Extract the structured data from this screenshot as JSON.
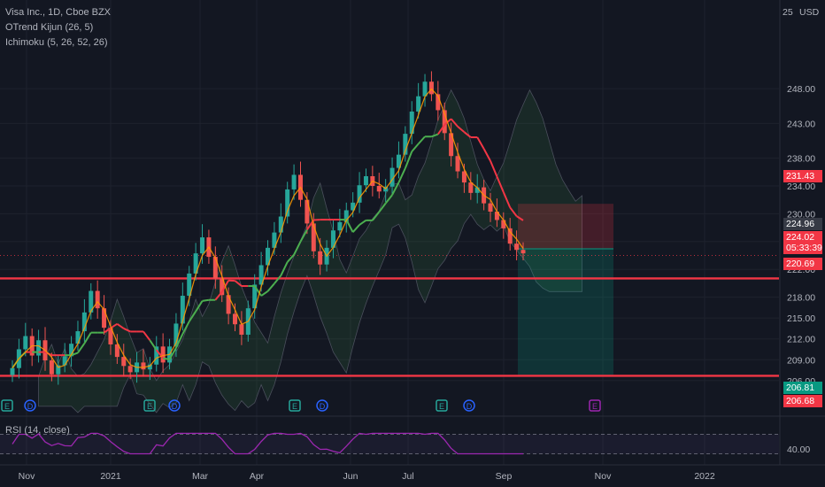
{
  "legend": {
    "symbol": "Visa Inc., 1D, Cboe BZX",
    "otrend": "OTrend Kijun (26, 5)",
    "ichimoku": "Ichimoku (5, 26, 52, 26)",
    "rsi": "RSI (14, close)"
  },
  "currency": "USD",
  "colors": {
    "background": "#131722",
    "up": "#26a69a",
    "down": "#ef5350",
    "line_green": "#4caf50",
    "line_red": "#f23645",
    "lagging": "#ff9800",
    "rsi": "#9c27b0",
    "level_line": "#f23645",
    "earnings_e": "#26a69a",
    "dividend_d": "#2962ff",
    "upcoming_e": "#9c27b0"
  },
  "tags": {
    "target": "231.43",
    "last": "224.96",
    "current_price": "224.02",
    "countdown": "05:33:39",
    "resistance": "220.69",
    "stop": "206.81",
    "support": "206.68",
    "rsi_last": "40.00",
    "top_cut": "25"
  },
  "chart_data": {
    "type": "candlestick",
    "title": "Visa Inc., 1D, Cboe BZX",
    "price_axis": {
      "currency": "USD",
      "ticks": [
        248.0,
        243.0,
        238.0,
        234.0,
        230.0,
        226.0,
        222.0,
        218.0,
        215.0,
        212.0,
        209.0,
        206.0
      ],
      "tick_labels": [
        "248.00",
        "243.00",
        "238.00",
        "234.00",
        "230.00",
        "226.00",
        "222.00",
        "218.00",
        "215.00",
        "212.00",
        "209.00",
        "206.00"
      ],
      "range": [
        203.5,
        251.5
      ]
    },
    "time_axis": {
      "labels": [
        "Nov",
        "2021",
        "Mar",
        "Apr",
        "Jun",
        "Jul",
        "Sep",
        "Nov",
        "2022"
      ]
    },
    "horizontal_levels": [
      220.69,
      206.68
    ],
    "position": {
      "entry": 224.96,
      "target": 231.43,
      "stop": 206.81
    },
    "events": {
      "earnings": [
        "Nov",
        "Jan",
        "Apr",
        "Jul",
        "Oct"
      ],
      "dividends": [
        "Nov",
        "Feb",
        "May",
        "Aug"
      ]
    },
    "closes_sampled": [
      207.8,
      210.5,
      212.4,
      209.6,
      211.8,
      208.9,
      206.9,
      208.2,
      209.5,
      211.3,
      213.1,
      215.8,
      218.9,
      216.4,
      213.6,
      211.2,
      209.4,
      208.1,
      207.2,
      208.6,
      207.6,
      208.3,
      210.9,
      208.6,
      210.9,
      214.2,
      218.2,
      221.4,
      224.3,
      226.6,
      223.8,
      220.7,
      218.3,
      215.6,
      214.1,
      212.6,
      216.4,
      219.8,
      222.6,
      225.1,
      227.3,
      229.6,
      233.5,
      235.6,
      232.0,
      228.6,
      224.6,
      222.7,
      225.1,
      227.6,
      228.8,
      230.5,
      231.6,
      234.1,
      235.4,
      234.0,
      233.2,
      233.9,
      236.6,
      238.5,
      241.5,
      244.7,
      246.9,
      249.0,
      247.2,
      244.9,
      241.6,
      238.3,
      236.1,
      234.5,
      233.0,
      233.8,
      231.5,
      230.3,
      229.1,
      227.9,
      225.7,
      224.8,
      224.3
    ],
    "rsi": {
      "name": "RSI (14, close)",
      "last": 40.0,
      "bands": [
        70,
        30
      ]
    }
  }
}
